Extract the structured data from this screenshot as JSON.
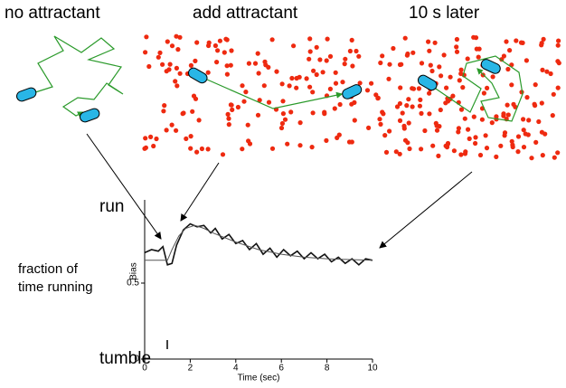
{
  "annotations": {
    "panel_titles": [
      "no attractant",
      "add attractant",
      "10 s later"
    ],
    "y_side_label": [
      "fraction of",
      "time running"
    ]
  },
  "chart_data": {
    "type": "line",
    "ylabel": "Bias",
    "xlabel": "Time (sec)",
    "xlim": [
      0,
      10
    ],
    "xticks": [
      0,
      2,
      4,
      6,
      8,
      10
    ],
    "ylim": [
      0,
      1
    ],
    "yticks": [
      0,
      0.5
    ],
    "state_labels": [
      {
        "value": 1,
        "label": "run"
      },
      {
        "value": 0,
        "label": "tumble"
      }
    ],
    "series": [
      {
        "color": "#111111",
        "x": [
          0,
          0.3,
          0.6,
          0.8,
          1.0,
          1.2,
          1.4,
          1.7,
          2.0,
          2.3,
          2.6,
          2.9,
          3.1,
          3.4,
          3.7,
          4.0,
          4.3,
          4.6,
          4.9,
          5.2,
          5.5,
          5.8,
          6.1,
          6.4,
          6.7,
          7.0,
          7.3,
          7.6,
          7.9,
          8.2,
          8.5,
          8.8,
          9.1,
          9.4,
          9.7,
          10
        ],
        "values": [
          0.7,
          0.72,
          0.71,
          0.74,
          0.62,
          0.63,
          0.75,
          0.85,
          0.89,
          0.87,
          0.88,
          0.83,
          0.86,
          0.79,
          0.82,
          0.76,
          0.78,
          0.72,
          0.76,
          0.69,
          0.73,
          0.67,
          0.72,
          0.68,
          0.71,
          0.66,
          0.7,
          0.66,
          0.69,
          0.64,
          0.67,
          0.63,
          0.66,
          0.62,
          0.66,
          0.65
        ]
      },
      {
        "color": "#555555",
        "x": [
          0,
          1.0,
          1.2,
          1.5,
          1.8,
          2.2,
          2.6,
          3,
          4,
          5,
          6,
          7,
          8,
          9,
          10
        ],
        "values": [
          0.65,
          0.65,
          0.72,
          0.81,
          0.86,
          0.88,
          0.86,
          0.83,
          0.77,
          0.72,
          0.69,
          0.67,
          0.66,
          0.655,
          0.65
        ]
      }
    ]
  }
}
